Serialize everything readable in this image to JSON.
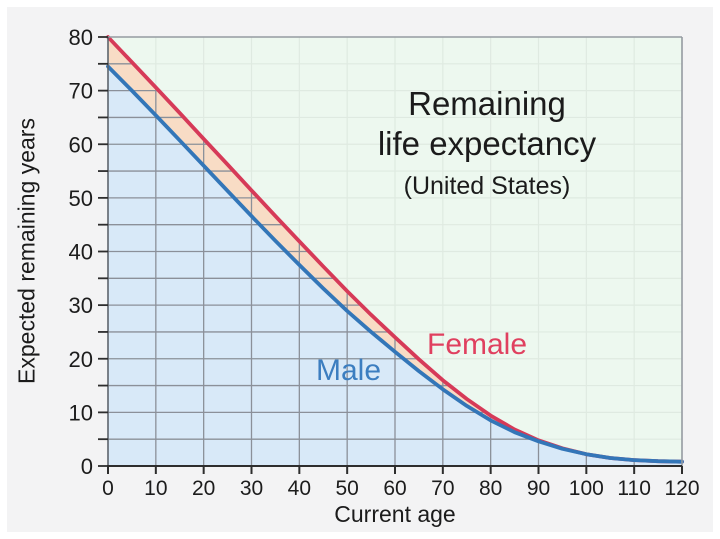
{
  "figure": {
    "title_line1": "Remaining",
    "title_line2": "life expectancy",
    "subtitle": "(United States)",
    "xlabel": "Current age",
    "ylabel": "Expected remaining years"
  },
  "colors": {
    "outer_bg": "#f3f3f4",
    "plot_bg": "#edf8ef",
    "grid_light": "#dfeae1",
    "grid_dark": "#8b90 99",
    "grid_dark_fixed": "#8b9099",
    "border": "#959ba1",
    "axis": "#2d2d2d",
    "tick_label": "#1c1c1c",
    "female_line": "#d63a58",
    "female_fill": "#f8dcc5",
    "female_text": "#e0405f",
    "male_line": "#3376b8",
    "male_fill": "#d8e9f8",
    "male_text": "#3c7ec0"
  },
  "chart_data": {
    "type": "area",
    "title": "Remaining life expectancy (United States)",
    "xlabel": "Current age",
    "ylabel": "Expected remaining years",
    "xlim": [
      0,
      120
    ],
    "ylim": [
      0,
      80
    ],
    "xticks": [
      0,
      10,
      20,
      30,
      40,
      50,
      60,
      70,
      80,
      90,
      100,
      110,
      120
    ],
    "yticks": [
      0,
      10,
      20,
      30,
      40,
      50,
      60,
      70,
      80
    ],
    "y_minor_step": 5,
    "grid": {
      "x_step": 10,
      "y_step": 5,
      "on": true
    },
    "legend_position": "inline",
    "x": [
      0,
      5,
      10,
      15,
      20,
      25,
      30,
      35,
      40,
      45,
      50,
      55,
      60,
      65,
      70,
      75,
      80,
      85,
      90,
      95,
      100,
      105,
      110,
      115,
      120
    ],
    "series": [
      {
        "name": "Female",
        "values": [
          80,
          75.3,
          70.6,
          65.8,
          61.0,
          56.2,
          51.4,
          46.6,
          41.9,
          37.2,
          32.6,
          28.2,
          24.0,
          19.9,
          16.0,
          12.5,
          9.4,
          6.8,
          4.8,
          3.3,
          2.2,
          1.5,
          1.1,
          0.9,
          0.8
        ]
      },
      {
        "name": "Male",
        "values": [
          74.5,
          70.0,
          65.4,
          60.7,
          56.0,
          51.3,
          46.6,
          42.0,
          37.5,
          33.1,
          28.9,
          25.0,
          21.3,
          17.7,
          14.3,
          11.2,
          8.5,
          6.3,
          4.6,
          3.2,
          2.2,
          1.5,
          1.1,
          0.9,
          0.8
        ]
      }
    ]
  }
}
